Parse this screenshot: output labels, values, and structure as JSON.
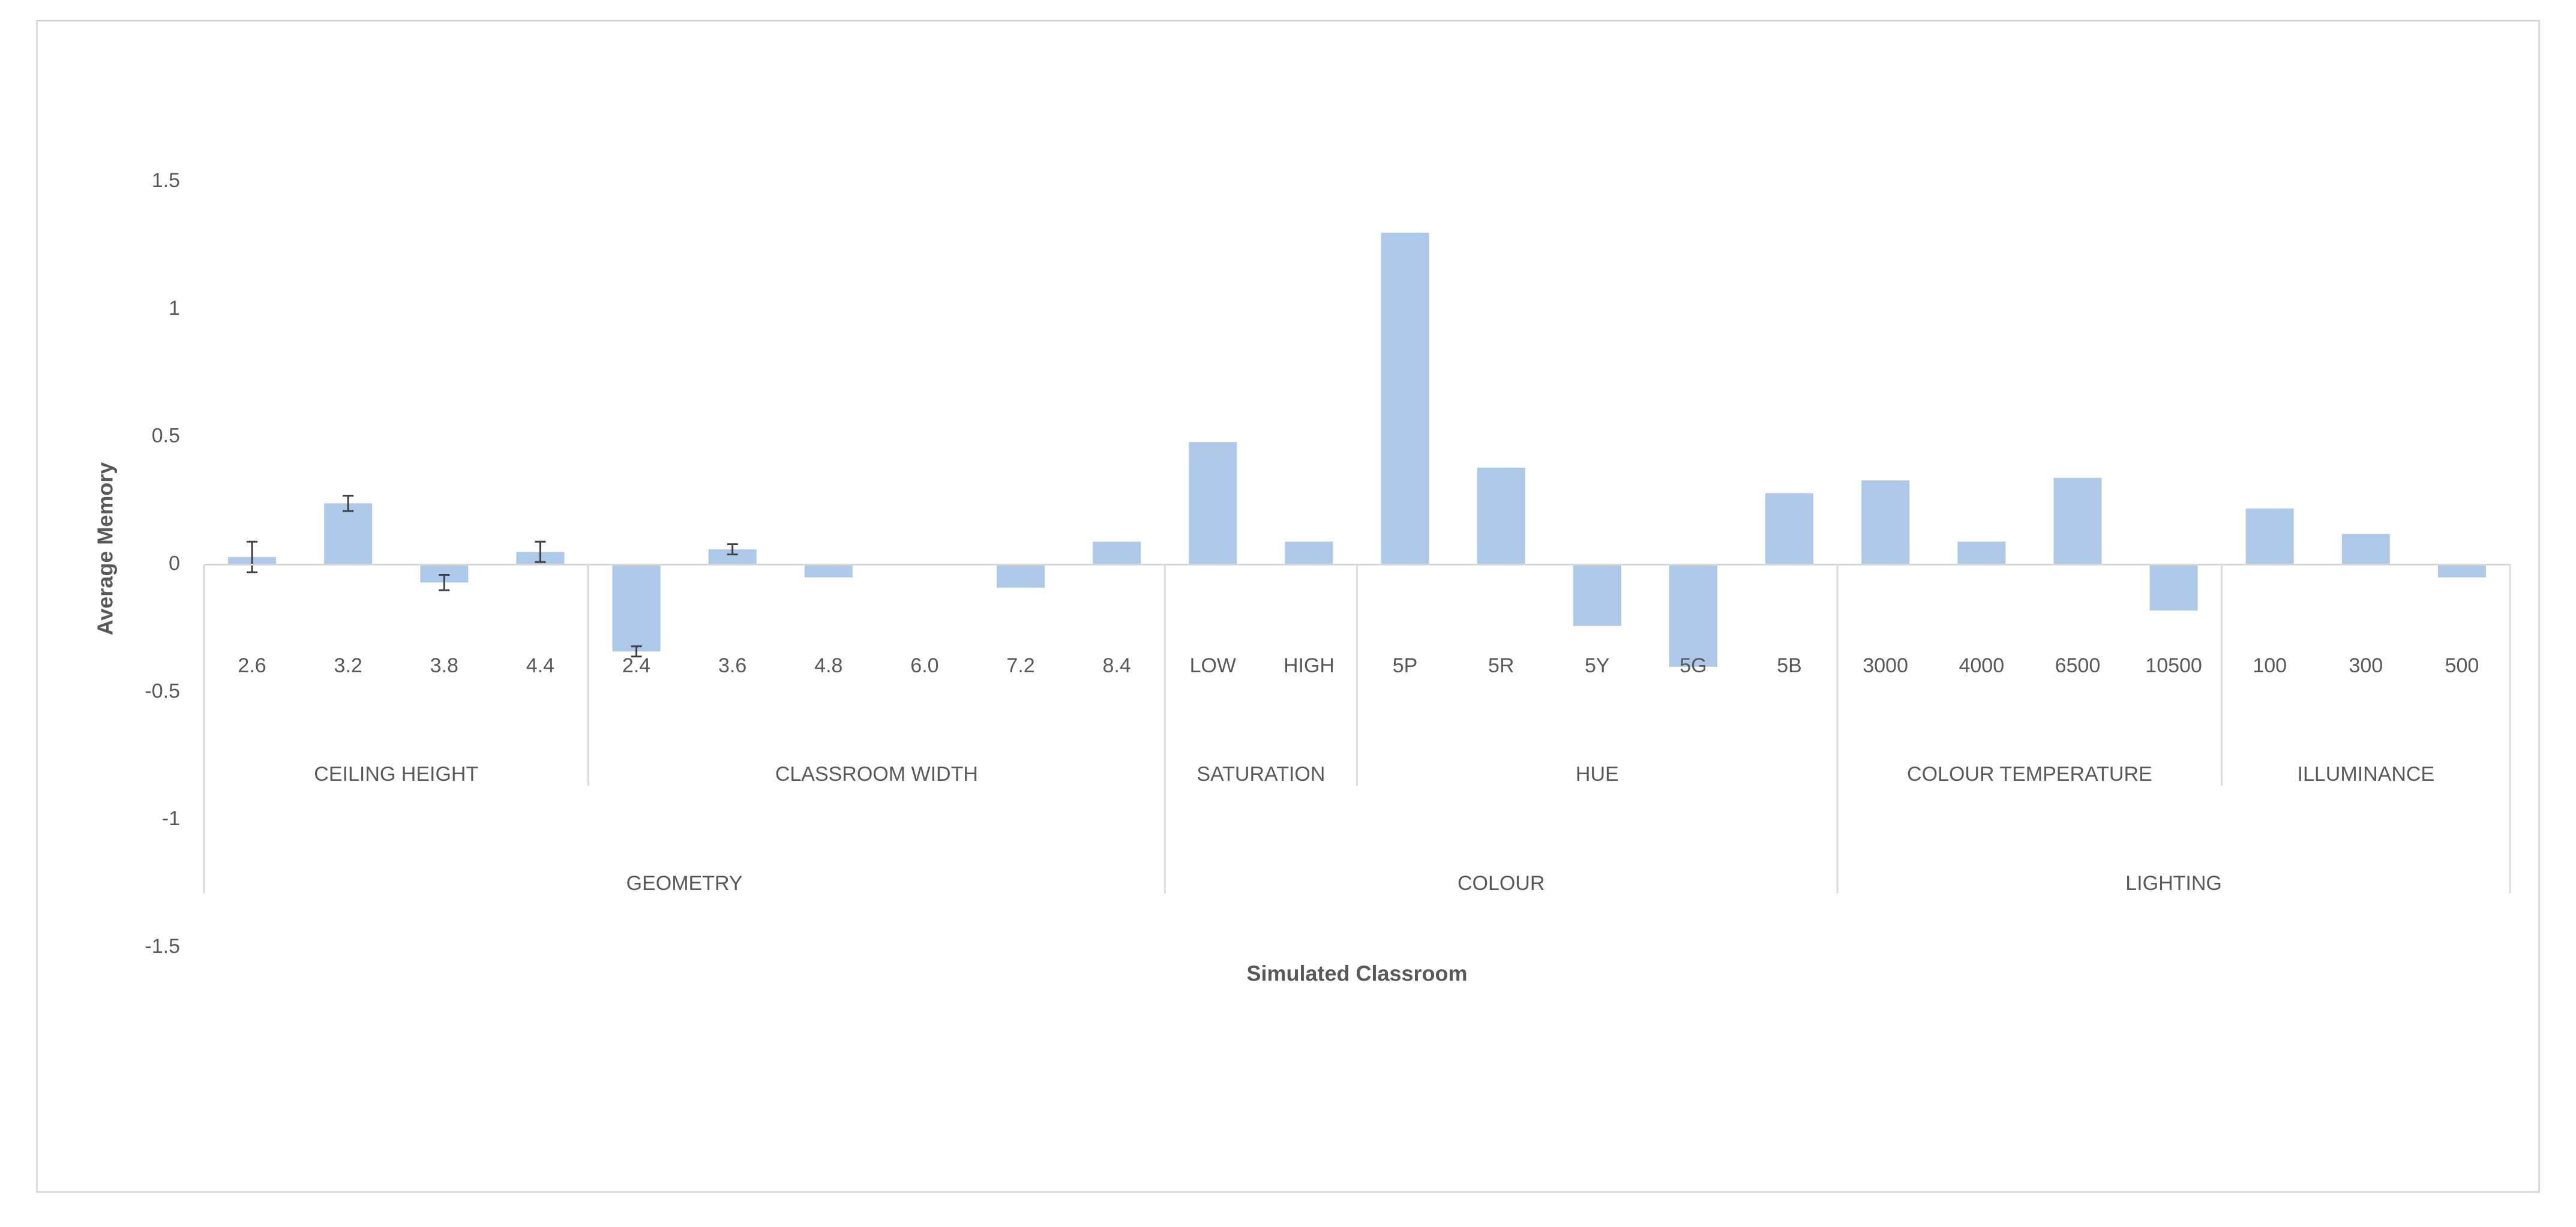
{
  "chart_data": {
    "type": "bar",
    "title": "",
    "xlabel": "Simulated Classroom",
    "ylabel": "Average Memory",
    "ylim": [
      -1.5,
      1.5
    ],
    "y_ticks": [
      "1.5",
      "1",
      "0.5",
      "0",
      "-0.5",
      "-1",
      "-1.5"
    ],
    "grid": false,
    "legend": "none",
    "bar_color": "#aec8ea",
    "categories": [
      "2.6",
      "3.2",
      "3.8",
      "4.4",
      "2.4",
      "3.6",
      "4.8",
      "6.0",
      "7.2",
      "8.4",
      "LOW",
      "HIGH",
      "5P",
      "5R",
      "5Y",
      "5G",
      "5B",
      "3000",
      "4000",
      "6500",
      "10500",
      "100",
      "300",
      "500"
    ],
    "values": [
      0.03,
      0.24,
      -0.07,
      0.05,
      -0.34,
      0.06,
      -0.05,
      0,
      -0.09,
      0.09,
      0.48,
      0.09,
      1.3,
      0.38,
      -0.24,
      -0.4,
      0.28,
      0.33,
      0.09,
      0.34,
      -0.18,
      0.22,
      0.12,
      -0.05
    ],
    "error_bars": [
      0.06,
      0.03,
      0.03,
      0.04,
      0.02,
      0.02,
      null,
      null,
      null,
      null,
      null,
      null,
      null,
      null,
      null,
      null,
      null,
      null,
      null,
      null,
      null,
      null,
      null,
      null
    ],
    "subgroups": [
      {
        "label": "CEILING HEIGHT",
        "count": 4
      },
      {
        "label": "CLASSROOM WIDTH",
        "count": 6
      },
      {
        "label": "SATURATION",
        "count": 2
      },
      {
        "label": "HUE",
        "count": 5
      },
      {
        "label": "COLOUR TEMPERATURE",
        "count": 4
      },
      {
        "label": "ILLUMINANCE",
        "count": 3
      }
    ],
    "groups": [
      {
        "label": "GEOMETRY",
        "count": 10
      },
      {
        "label": "COLOUR",
        "count": 7
      },
      {
        "label": "LIGHTING",
        "count": 7
      }
    ]
  }
}
